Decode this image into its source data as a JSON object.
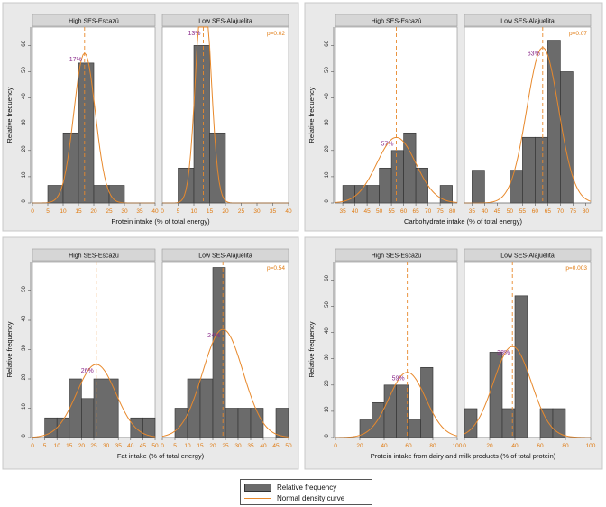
{
  "chart_data": [
    {
      "type": "bar",
      "xlabel": "Protein intake (% of total energy)",
      "ylabel": "Relative frequency",
      "xticks": [
        0,
        5,
        10,
        15,
        20,
        25,
        30,
        35,
        40
      ],
      "xlim": [
        0,
        40
      ],
      "yticks": [
        0,
        10,
        20,
        30,
        40,
        50,
        60
      ],
      "ylim": [
        0,
        67
      ],
      "bin_width": 5,
      "pvalue": "p=0.02",
      "panels": [
        {
          "title": "High SES-Escazú",
          "bins_start": [
            5,
            10,
            15,
            20,
            25
          ],
          "values": [
            6.7,
            26.7,
            53.3,
            6.7,
            6.7
          ],
          "mean": 17,
          "mean_label": "17%",
          "sd": 3.5
        },
        {
          "title": "Low SES-Alajuelita",
          "bins_start": [
            5,
            10,
            15,
            20
          ],
          "values": [
            13.3,
            60,
            26.7,
            0
          ],
          "mean": 13,
          "mean_label": "13%",
          "sd": 2.3
        }
      ]
    },
    {
      "type": "bar",
      "xlabel": "Carbohydrate intake (% of total energy)",
      "ylabel": "Relative frequency",
      "xticks": [
        35,
        40,
        45,
        50,
        55,
        60,
        65,
        70,
        75,
        80
      ],
      "xlim": [
        32,
        82
      ],
      "yticks": [
        0,
        10,
        20,
        30,
        40,
        50,
        60
      ],
      "ylim": [
        0,
        67
      ],
      "bin_width": 5,
      "pvalue": "p=0.07",
      "panels": [
        {
          "title": "High SES-Escazú",
          "bins_start": [
            35,
            40,
            45,
            50,
            55,
            60,
            65,
            75
          ],
          "values": [
            6.7,
            6.7,
            6.7,
            13.3,
            20,
            26.7,
            13.3,
            6.7
          ],
          "mean": 57,
          "mean_label": "57%",
          "sd": 8
        },
        {
          "title": "Low SES-Alajuelita",
          "bins_start": [
            35,
            50,
            55,
            60,
            65,
            70
          ],
          "values": [
            12.5,
            12.5,
            25,
            25,
            62,
            50
          ],
          "mean": 63,
          "mean_label": "63%",
          "sd": 6.3
        }
      ]
    },
    {
      "type": "bar",
      "xlabel": "Fat intake (% of total energy)",
      "ylabel": "Relative frequency",
      "xticks": [
        0,
        5,
        10,
        15,
        20,
        25,
        30,
        35,
        40,
        45,
        50
      ],
      "xlim": [
        0,
        50
      ],
      "yticks": [
        0,
        10,
        20,
        30,
        40,
        50
      ],
      "ylim": [
        0,
        60
      ],
      "bin_width": 5,
      "pvalue": "p=0.54",
      "panels": [
        {
          "title": "High SES-Escazú",
          "bins_start": [
            5,
            10,
            15,
            20,
            25,
            30,
            40,
            45
          ],
          "values": [
            6.7,
            6.7,
            20,
            13.3,
            20,
            20,
            6.7,
            6.7
          ],
          "mean": 26,
          "mean_label": "26%",
          "sd": 8
        },
        {
          "title": "Low SES-Alajuelita",
          "bins_start": [
            5,
            10,
            15,
            20,
            25,
            30,
            35,
            45
          ],
          "values": [
            10,
            20,
            20,
            58,
            10,
            10,
            10,
            10
          ],
          "mean": 24,
          "mean_label": "24%",
          "sd": 8
        }
      ]
    },
    {
      "type": "bar",
      "xlabel": "Protein intake from dairy and milk products (% of total protein)",
      "ylabel": "Relative frequency",
      "xticks": [
        0,
        20,
        40,
        60,
        80,
        100
      ],
      "xlim": [
        0,
        100
      ],
      "yticks": [
        0,
        10,
        20,
        30,
        40,
        50,
        60
      ],
      "ylim": [
        0,
        67
      ],
      "bin_width": 10,
      "pvalue": "p=0.003",
      "panels": [
        {
          "title": "High SES-Escazú",
          "bins_start": [
            20,
            30,
            40,
            50,
            60,
            70
          ],
          "values": [
            6.7,
            13.3,
            20,
            20,
            6.7,
            26.7
          ],
          "mean": 59,
          "mean_label": "59%",
          "sd": 15
        },
        {
          "title": "Low SES-Alajuelita",
          "bins_start": [
            0,
            10,
            20,
            30,
            40,
            50,
            60,
            70
          ],
          "values": [
            11,
            0,
            32.5,
            11,
            54,
            0,
            11,
            11
          ],
          "mean": 38,
          "mean_label": "38%",
          "sd": 15
        }
      ]
    }
  ],
  "legend": {
    "items": [
      {
        "label": "Relative frequency",
        "kind": "bar"
      },
      {
        "label": "Normal density curve",
        "kind": "line"
      }
    ]
  },
  "colors": {
    "bar_fill": "#6b6b6b",
    "bar_edge": "#2f2f2f",
    "curve": "#e8892c",
    "mean_label": "#8a2a8a",
    "tick_label": "#e07a10",
    "panel_header": "#d6d6d6"
  }
}
